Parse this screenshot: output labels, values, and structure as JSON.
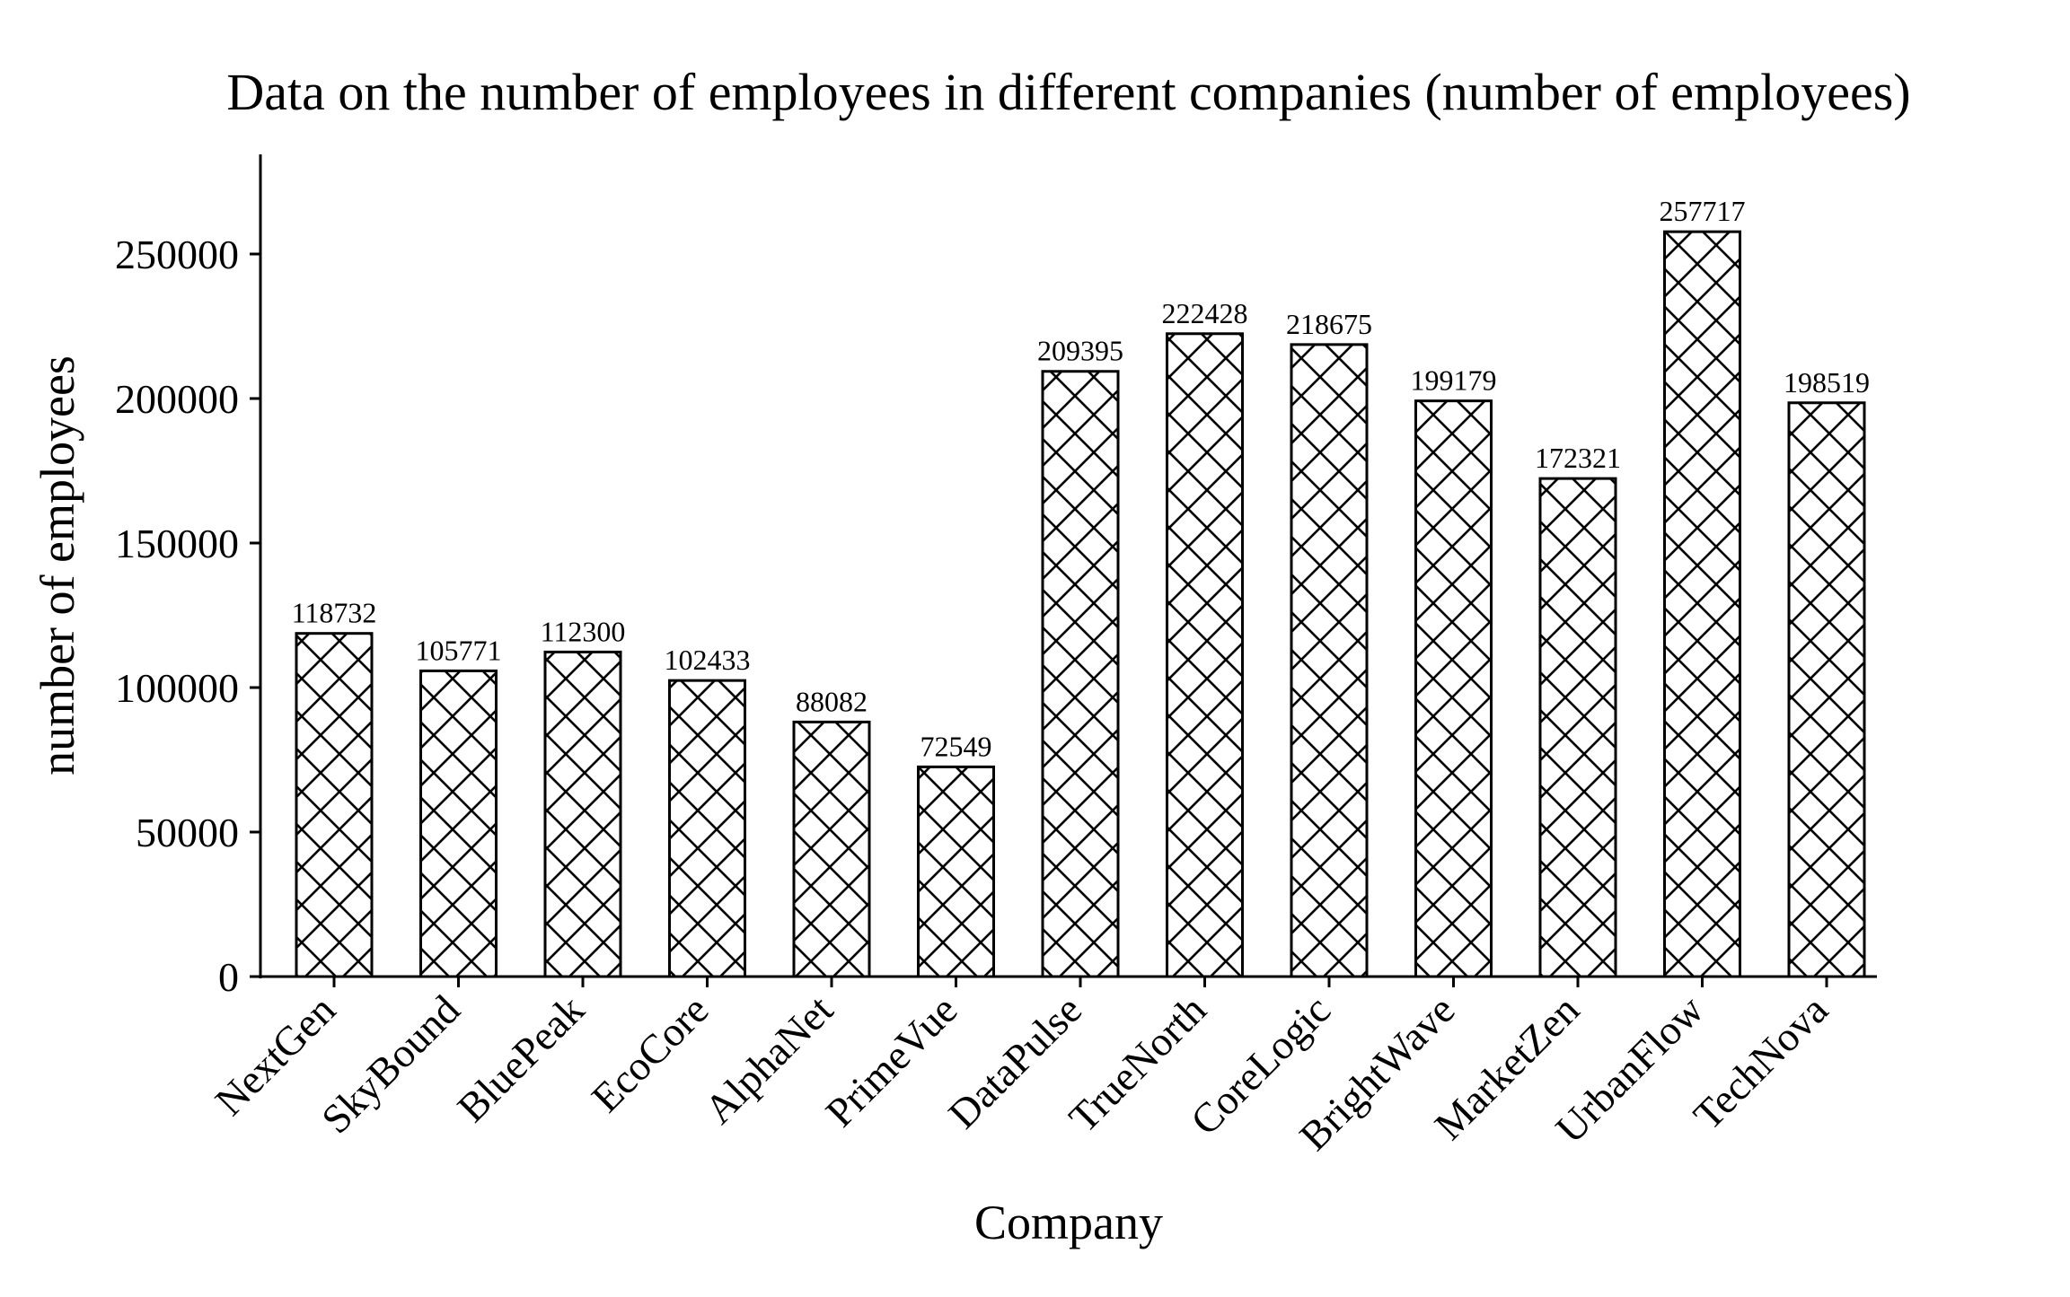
{
  "chart_data": {
    "type": "bar",
    "title": "Data on the number of employees in different companies (number of employees)",
    "xlabel": "Company",
    "ylabel": "number of employees",
    "categories": [
      "NextGen",
      "SkyBound",
      "BluePeak",
      "EcoCore",
      "AlphaNet",
      "PrimeVue",
      "DataPulse",
      "TrueNorth",
      "CoreLogic",
      "BrightWave",
      "MarketZen",
      "UrbanFlow",
      "TechNova"
    ],
    "values": [
      118732,
      105771,
      112300,
      102433,
      88082,
      72549,
      209395,
      222428,
      218675,
      199179,
      172321,
      257717,
      198519
    ],
    "data_labels": [
      "118732",
      "105771",
      "112300",
      "102433",
      "88082",
      "72549",
      "209395",
      "222428",
      "218675",
      "199179",
      "172321",
      "257717",
      "198519"
    ],
    "ylim": [
      0,
      284000
    ],
    "yticks": [
      0,
      50000,
      100000,
      150000,
      200000,
      250000
    ],
    "ytick_labels": [
      "0",
      "50000",
      "100000",
      "150000",
      "200000",
      "250000"
    ],
    "grid": false,
    "legend": "none",
    "bar_fill": "#ffffff",
    "bar_edge": "#000000",
    "hatch": "cross-diagonal"
  }
}
